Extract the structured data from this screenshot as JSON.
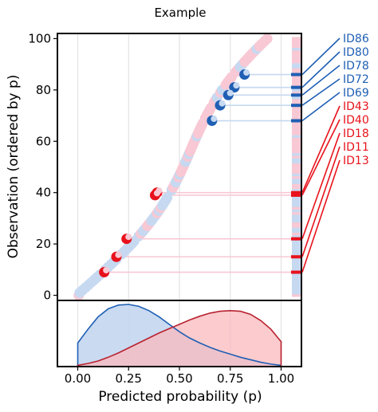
{
  "chart_data": {
    "type": "scatter",
    "title": "Example",
    "xlabel": "Predicted probability (p)",
    "ylabel": "Observation (ordered by p)",
    "xlim": [
      -0.1,
      1.1
    ],
    "ylim": [
      -2,
      102
    ],
    "x_ticks": [
      "0.00",
      "0.25",
      "0.50",
      "0.75",
      "1.00"
    ],
    "x_tick_values": [
      0,
      0.25,
      0.5,
      0.75,
      1.0
    ],
    "y_ticks": [
      "0",
      "20",
      "40",
      "60",
      "80",
      "100"
    ],
    "y_tick_values": [
      0,
      20,
      40,
      60,
      80,
      100
    ],
    "grid": "vertical",
    "colors": {
      "class0_light": "#c6d9f1",
      "class1_light": "#f8c8d4",
      "class0_dark": "#1f5fb4",
      "class1_dark": "#e8121c",
      "class0_density_fill": "#c3d6ef",
      "class0_density_line": "#1f5fb4",
      "class1_density_fill": "#f9b9bd",
      "class1_density_line": "#b8222f"
    },
    "highlighted": [
      {
        "id": "ID86",
        "p": 0.82,
        "obs": 86,
        "cls": 0
      },
      {
        "id": "ID80",
        "p": 0.77,
        "obs": 81,
        "cls": 0
      },
      {
        "id": "ID78",
        "p": 0.74,
        "obs": 78,
        "cls": 0
      },
      {
        "id": "ID72",
        "p": 0.7,
        "obs": 74,
        "cls": 0
      },
      {
        "id": "ID69",
        "p": 0.66,
        "obs": 68,
        "cls": 0
      },
      {
        "id": "ID43",
        "p": 0.39,
        "obs": 40,
        "cls": 1
      },
      {
        "id": "ID40",
        "p": 0.38,
        "obs": 39,
        "cls": 1
      },
      {
        "id": "ID18",
        "p": 0.24,
        "obs": 22,
        "cls": 1
      },
      {
        "id": "ID11",
        "p": 0.19,
        "obs": 15,
        "cls": 1
      },
      {
        "id": "ID13",
        "p": 0.13,
        "obs": 9,
        "cls": 1
      }
    ],
    "density": {
      "x": [
        0.0,
        0.05,
        0.1,
        0.15,
        0.2,
        0.25,
        0.3,
        0.35,
        0.4,
        0.45,
        0.5,
        0.55,
        0.6,
        0.65,
        0.7,
        0.75,
        0.8,
        0.85,
        0.9,
        0.95,
        1.0
      ],
      "class0": [
        0.38,
        0.6,
        0.8,
        0.93,
        0.99,
        1.0,
        0.97,
        0.9,
        0.8,
        0.68,
        0.56,
        0.46,
        0.38,
        0.31,
        0.25,
        0.2,
        0.15,
        0.11,
        0.07,
        0.04,
        0.02
      ],
      "class1": [
        0.02,
        0.05,
        0.09,
        0.15,
        0.22,
        0.3,
        0.38,
        0.46,
        0.54,
        0.61,
        0.68,
        0.75,
        0.81,
        0.86,
        0.89,
        0.9,
        0.89,
        0.84,
        0.74,
        0.6,
        0.4
      ]
    }
  }
}
